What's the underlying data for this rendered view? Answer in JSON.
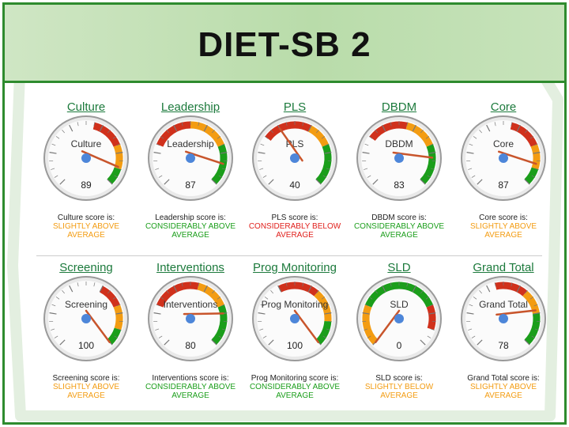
{
  "title": "DIET-SB 2",
  "colors": {
    "green": "#1b9e1b",
    "orange": "#f39c12",
    "red": "#d0311c",
    "needle": "#c8552c",
    "hub": "#4d86d9",
    "slightly_above": "#f39c12",
    "considerably_above": "#1b9e1b",
    "considerably_below": "#e0201c",
    "slightly_below": "#f39c12"
  },
  "gauges": [
    {
      "id": "culture",
      "title": "Culture",
      "label": "Culture",
      "value": 89,
      "score_text": "Culture score is:",
      "level_1": "SLIGHTLY ABOVE",
      "level_2": "AVERAGE",
      "level_class": "slightly_above",
      "zones": [
        [
          "red",
          0.55,
          0.75
        ],
        [
          "orange",
          0.75,
          0.9
        ],
        [
          "green",
          0.9,
          1.0
        ]
      ]
    },
    {
      "id": "leadership",
      "title": "Leadership",
      "label": "Leadership",
      "value": 87,
      "score_text": "Leadership score is:",
      "level_1": "CONSIDERABLY ABOVE",
      "level_2": "AVERAGE",
      "level_class": "considerably_above",
      "zones": [
        [
          "red",
          0.25,
          0.5
        ],
        [
          "orange",
          0.5,
          0.75
        ],
        [
          "green",
          0.75,
          1.0
        ]
      ]
    },
    {
      "id": "pls",
      "title": "PLS",
      "label": "PLS",
      "value": 40,
      "score_text": "PLS score is:",
      "level_1": "CONSIDERABLY BELOW",
      "level_2": "AVERAGE",
      "level_class": "considerably_below",
      "zones": [
        [
          "red",
          0.3,
          0.6
        ],
        [
          "orange",
          0.6,
          0.75
        ],
        [
          "green",
          0.75,
          1.0
        ]
      ]
    },
    {
      "id": "dbdm",
      "title": "DBDM",
      "label": "DBDM",
      "value": 83,
      "score_text": "DBDM score is:",
      "level_1": "CONSIDERABLY ABOVE",
      "level_2": "AVERAGE",
      "level_class": "considerably_above",
      "zones": [
        [
          "red",
          0.3,
          0.55
        ],
        [
          "orange",
          0.55,
          0.75
        ],
        [
          "green",
          0.75,
          1.0
        ]
      ]
    },
    {
      "id": "core",
      "title": "Core",
      "label": "Core",
      "value": 87,
      "score_text": "Core score is:",
      "level_1": "SLIGHTLY ABOVE",
      "level_2": "AVERAGE",
      "level_class": "slightly_above",
      "zones": [
        [
          "red",
          0.55,
          0.75
        ],
        [
          "orange",
          0.75,
          0.9
        ],
        [
          "green",
          0.9,
          1.0
        ]
      ]
    },
    {
      "id": "screening",
      "title": "Screening",
      "label": "Screening",
      "value": 100,
      "score_text": "Screening score is:",
      "level_1": "SLIGHTLY ABOVE",
      "level_2": "AVERAGE",
      "level_class": "slightly_above",
      "zones": [
        [
          "red",
          0.6,
          0.75
        ],
        [
          "orange",
          0.75,
          0.9
        ],
        [
          "green",
          0.9,
          1.0
        ]
      ]
    },
    {
      "id": "interventions",
      "title": "Interventions",
      "label": "Interventions",
      "value": 80,
      "score_text": "Interventions score is:",
      "level_1": "CONSIDERABLY ABOVE",
      "level_2": "AVERAGE",
      "level_class": "considerably_above",
      "zones": [
        [
          "red",
          0.25,
          0.55
        ],
        [
          "orange",
          0.55,
          0.75
        ],
        [
          "green",
          0.75,
          1.0
        ]
      ]
    },
    {
      "id": "prog-monitoring",
      "title": "Prog Monitoring",
      "label": "Prog Monitoring",
      "value": 100,
      "score_text": "Prog Monitoring score is:",
      "level_1": "CONSIDERABLY ABOVE",
      "level_2": "AVERAGE",
      "level_class": "considerably_above",
      "zones": [
        [
          "red",
          0.4,
          0.65
        ],
        [
          "orange",
          0.65,
          0.85
        ],
        [
          "green",
          0.85,
          1.0
        ]
      ]
    },
    {
      "id": "sld",
      "title": "SLD",
      "label": "SLD",
      "value": 0,
      "score_text": "SLD score is:",
      "level_1": "SLIGHTLY BELOW",
      "level_2": "AVERAGE",
      "level_class": "slightly_below",
      "zones": [
        [
          "orange",
          0.0,
          0.25
        ],
        [
          "green",
          0.25,
          0.75
        ],
        [
          "red",
          0.75,
          0.9
        ]
      ]
    },
    {
      "id": "grand-total",
      "title": "Grand Total",
      "label": "Grand Total",
      "value": 78,
      "score_text": "Grand Total score is:",
      "level_1": "SLIGHTLY ABOVE",
      "level_2": "AVERAGE",
      "level_class": "slightly_above",
      "zones": [
        [
          "red",
          0.45,
          0.65
        ],
        [
          "orange",
          0.65,
          0.8
        ],
        [
          "green",
          0.8,
          1.0
        ]
      ]
    }
  ]
}
